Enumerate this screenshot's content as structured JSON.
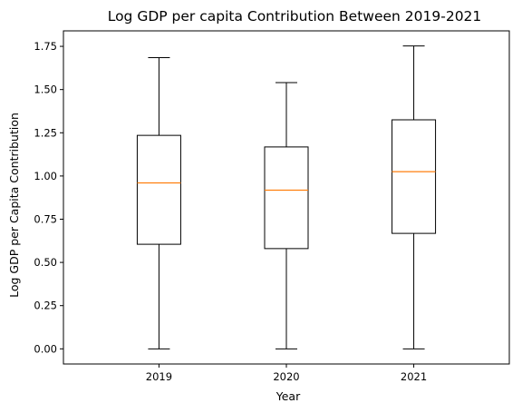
{
  "chart_data": {
    "type": "box",
    "title": "Log GDP per capita Contribution Between 2019-2021",
    "xlabel": "Year",
    "ylabel": "Log GDP per Capita Contribution",
    "categories": [
      "2019",
      "2020",
      "2021"
    ],
    "boxes": [
      {
        "category": "2019",
        "whisker_low": 0.0,
        "q1": 0.605,
        "median": 0.96,
        "q3": 1.235,
        "whisker_high": 1.685
      },
      {
        "category": "2020",
        "whisker_low": 0.0,
        "q1": 0.58,
        "median": 0.918,
        "q3": 1.168,
        "whisker_high": 1.54
      },
      {
        "category": "2021",
        "whisker_low": 0.0,
        "q1": 0.668,
        "median": 1.025,
        "q3": 1.325,
        "whisker_high": 1.752
      }
    ],
    "yticks": [
      0.0,
      0.25,
      0.5,
      0.75,
      1.0,
      1.25,
      1.5,
      1.75
    ],
    "ytick_labels": [
      "0.00",
      "0.25",
      "0.50",
      "0.75",
      "1.00",
      "1.25",
      "1.50",
      "1.75"
    ],
    "ylim": [
      -0.0876,
      1.8396
    ],
    "grid": false,
    "colors": {
      "box": "#000000",
      "median": "#ff7f0e"
    }
  }
}
